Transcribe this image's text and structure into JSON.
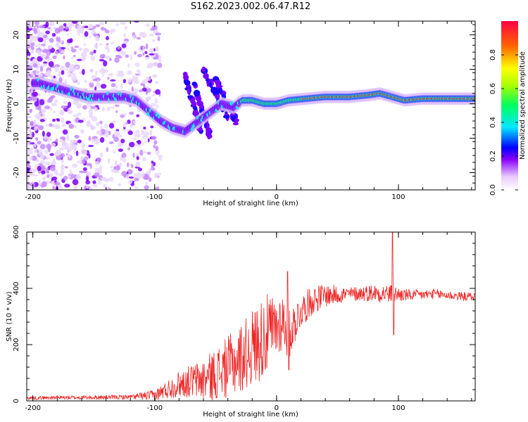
{
  "figure_title": "S162.2023.002.06.47.R12",
  "colors": {
    "spectrum": "#6a00ff",
    "snr_line": "#ee2222",
    "axes": "#000000"
  },
  "chart_data": [
    {
      "type": "heatmap",
      "name": "dynamic-spectrum",
      "xlabel": "Height of straight line (km)",
      "ylabel": "Frequency (Hz)",
      "xlim": [
        -205,
        163
      ],
      "ylim": [
        -25,
        24
      ],
      "xticks": [
        -200,
        -100,
        0,
        100
      ],
      "yticks": [
        -20,
        -10,
        0,
        10,
        20
      ],
      "colorbar": {
        "label": "Normalized spectral amplitude",
        "range": [
          0.0,
          1.0
        ],
        "ticks": [
          0.0,
          0.2,
          0.4,
          0.6,
          0.8
        ]
      },
      "ridge": {
        "x": [
          -195,
          -185,
          -175,
          -165,
          -155,
          -140,
          -125,
          -115,
          -105,
          -95,
          -85,
          -75,
          -60,
          -45,
          -35,
          -28,
          -20,
          -10,
          0,
          10,
          25,
          40,
          60,
          75,
          85,
          95,
          105,
          120,
          140,
          163
        ],
        "y": [
          6,
          5,
          4,
          3,
          2,
          2,
          2,
          1,
          -2,
          -5,
          -7,
          -8,
          -4,
          0,
          -1,
          1,
          1,
          0,
          0,
          1,
          1.5,
          2,
          2,
          2.5,
          3,
          2,
          1,
          1.5,
          1.5,
          1.5
        ]
      }
    },
    {
      "type": "line",
      "name": "snr",
      "xlabel": "Height of straight line (km)",
      "ylabel": "SNR (10 * v/v)",
      "xlim": [
        -205,
        163
      ],
      "ylim": [
        0,
        600
      ],
      "xticks": [
        -200,
        -100,
        0,
        100
      ],
      "yticks": [
        0,
        200,
        400,
        600
      ],
      "trend": {
        "x": [
          -205,
          -180,
          -150,
          -120,
          -100,
          -90,
          -80,
          -70,
          -60,
          -50,
          -40,
          -30,
          -20,
          -10,
          0,
          5,
          10,
          15,
          20,
          30,
          40,
          60,
          80,
          95,
          110,
          130,
          150,
          163
        ],
        "y": [
          10,
          12,
          12,
          14,
          20,
          40,
          60,
          70,
          75,
          95,
          120,
          150,
          190,
          230,
          260,
          290,
          230,
          280,
          320,
          360,
          375,
          380,
          385,
          380,
          375,
          380,
          372,
          370
        ]
      },
      "noise_envelope": {
        "x": [
          -205,
          -120,
          -100,
          -70,
          -40,
          -10,
          20,
          60,
          90,
          110,
          163
        ],
        "y": [
          6,
          8,
          20,
          60,
          110,
          150,
          60,
          25,
          35,
          20,
          15
        ]
      },
      "spikes": [
        {
          "x": 9,
          "y": 460
        },
        {
          "x": 10,
          "y": 110
        },
        {
          "x": 95,
          "y": 600
        },
        {
          "x": 96,
          "y": 235
        }
      ]
    }
  ]
}
